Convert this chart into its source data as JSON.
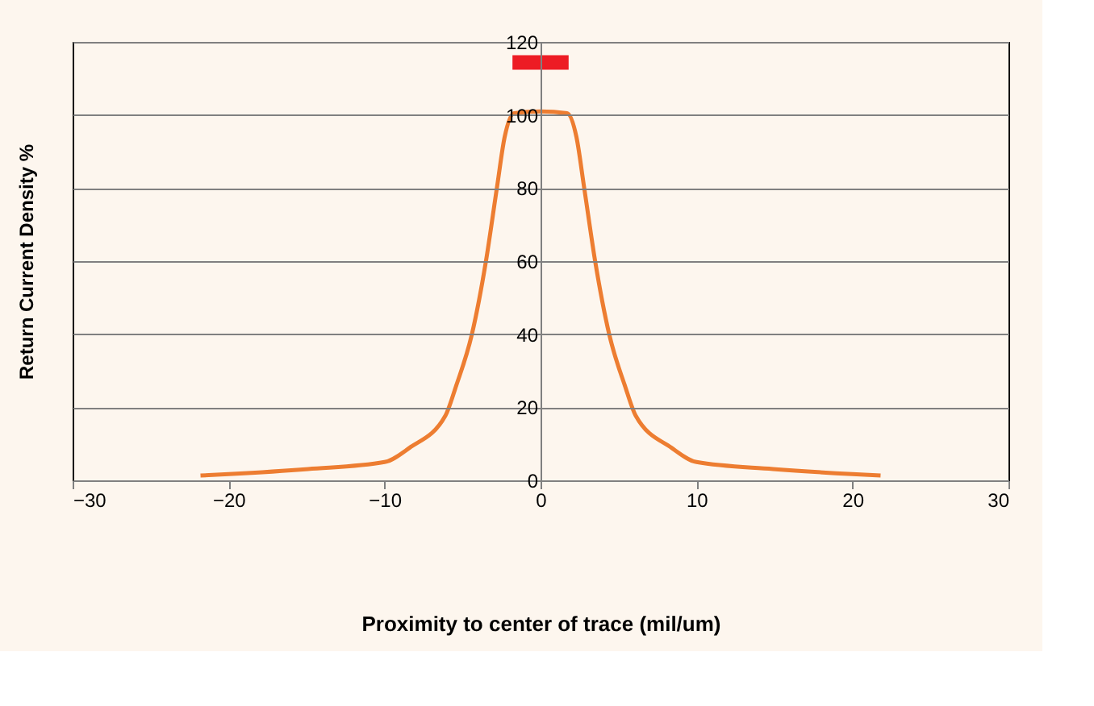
{
  "chart_data": {
    "type": "line",
    "xlabel": "Proximity to center of trace (mil/um)",
    "ylabel": "Return Current Density %",
    "xlim": [
      -30,
      30
    ],
    "ylim": [
      0,
      120
    ],
    "xticks": [
      -30,
      -20,
      -10,
      0,
      10,
      20,
      30
    ],
    "yticks": [
      0,
      20,
      40,
      60,
      80,
      100,
      120
    ],
    "grid": "y",
    "legend": false,
    "series": [
      {
        "color": "#ed7d31",
        "x": [
          -21.8,
          -20,
          -14.9,
          -10,
          -8.4,
          -6.1,
          -5.4,
          -4.4,
          -3.5,
          -2.8,
          -2.3,
          -1.7,
          0,
          1.7,
          2.3,
          2.8,
          3.5,
          4.4,
          5.4,
          6.1,
          8.4,
          10,
          14.9,
          20,
          21.8
        ],
        "values": [
          1.3,
          1.7,
          3.1,
          5,
          8.9,
          17.7,
          26,
          40,
          60,
          80,
          94,
          100.5,
          101,
          100.5,
          94,
          80,
          60,
          40,
          26,
          17.7,
          8.9,
          5,
          3.1,
          1.7,
          1.3
        ]
      },
      {
        "color": "#ed1c24",
        "x": [
          -1.8,
          1.8
        ],
        "values": [
          114.4,
          114.4
        ]
      }
    ]
  }
}
